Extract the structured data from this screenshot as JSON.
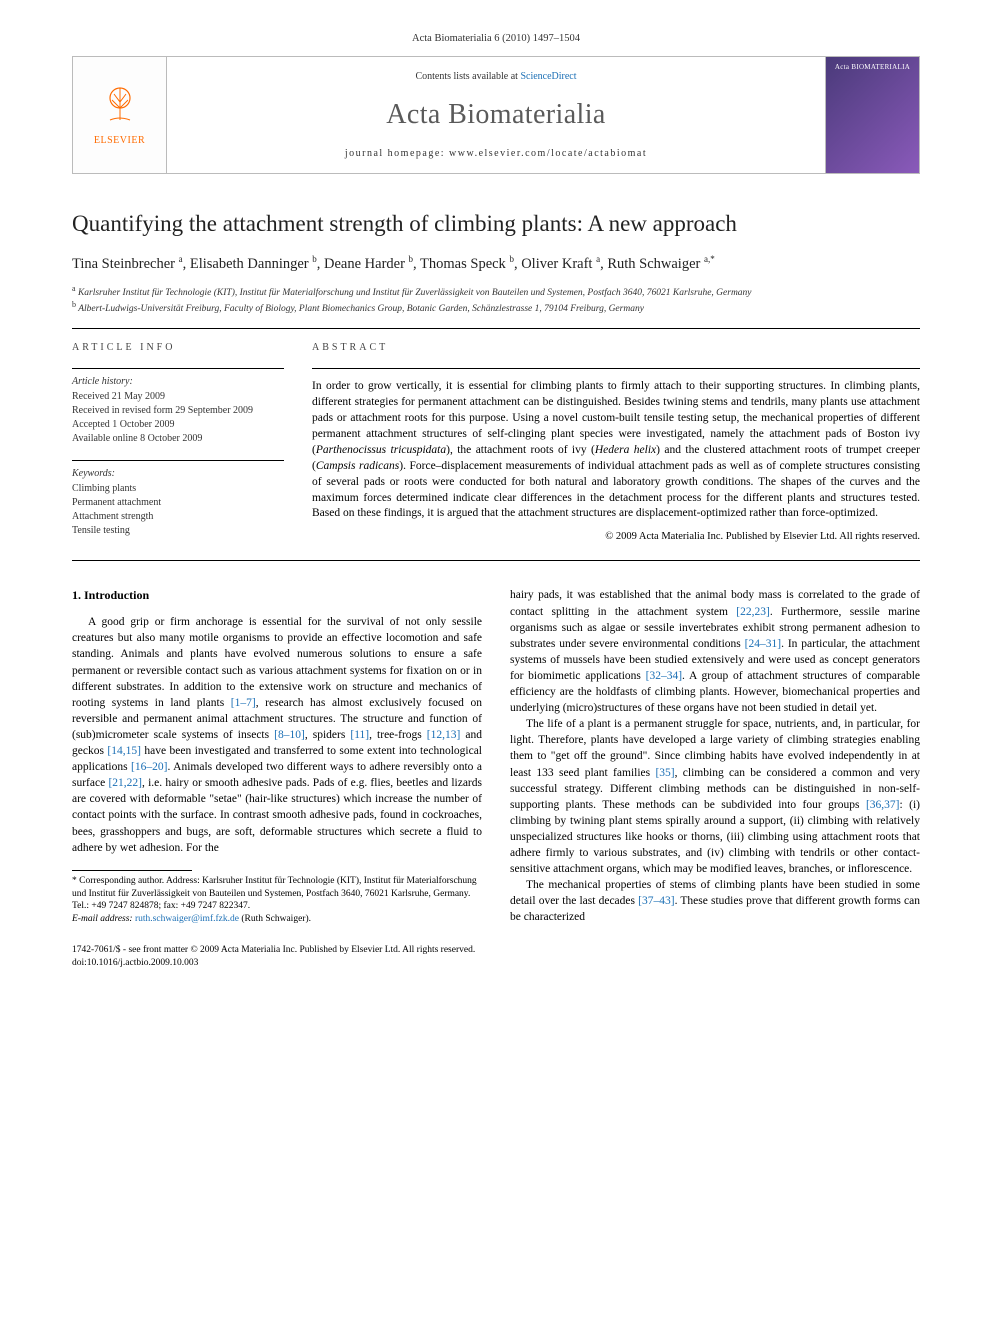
{
  "header": {
    "citation": "Acta Biomaterialia 6 (2010) 1497–1504"
  },
  "banner": {
    "publisher": "ELSEVIER",
    "contents_prefix": "Contents lists available at ",
    "contents_link": "ScienceDirect",
    "journal": "Acta Biomaterialia",
    "homepage_label": "journal homepage: www.elsevier.com/locate/actabiomat",
    "cover_label": "Acta BIOMATERIALIA"
  },
  "article": {
    "title": "Quantifying the attachment strength of climbing plants: A new approach",
    "authors_html": "Tina Steinbrecher <sup>a</sup>, Elisabeth Danninger <sup>b</sup>, Deane Harder <sup>b</sup>, Thomas Speck <sup>b</sup>, Oliver Kraft <sup>a</sup>, Ruth Schwaiger <sup>a,*</sup>",
    "affiliations": {
      "a": "Karlsruher Institut für Technologie (KIT), Institut für Materialforschung und Institut für Zuverlässigkeit von Bauteilen und Systemen, Postfach 3640, 76021 Karlsruhe, Germany",
      "b": "Albert-Ludwigs-Universität Freiburg, Faculty of Biology, Plant Biomechanics Group, Botanic Garden, Schänzlestrasse 1, 79104 Freiburg, Germany"
    }
  },
  "info": {
    "section_label": "ARTICLE INFO",
    "history_label": "Article history:",
    "history": [
      "Received 21 May 2009",
      "Received in revised form 29 September 2009",
      "Accepted 1 October 2009",
      "Available online 8 October 2009"
    ],
    "keywords_label": "Keywords:",
    "keywords": [
      "Climbing plants",
      "Permanent attachment",
      "Attachment strength",
      "Tensile testing"
    ]
  },
  "abstract": {
    "section_label": "ABSTRACT",
    "text": "In order to grow vertically, it is essential for climbing plants to firmly attach to their supporting structures. In climbing plants, different strategies for permanent attachment can be distinguished. Besides twining stems and tendrils, many plants use attachment pads or attachment roots for this purpose. Using a novel custom-built tensile testing setup, the mechanical properties of different permanent attachment structures of self-clinging plant species were investigated, namely the attachment pads of Boston ivy (Parthenocissus tricuspidata), the attachment roots of ivy (Hedera helix) and the clustered attachment roots of trumpet creeper (Campsis radicans). Force–displacement measurements of individual attachment pads as well as of complete structures consisting of several pads or roots were conducted for both natural and laboratory growth conditions. The shapes of the curves and the maximum forces determined indicate clear differences in the detachment process for the different plants and structures tested. Based on these findings, it is argued that the attachment structures are displacement-optimized rather than force-optimized.",
    "copyright": "© 2009 Acta Materialia Inc. Published by Elsevier Ltd. All rights reserved."
  },
  "body": {
    "section_number": "1.",
    "section_title": "Introduction",
    "col1_p1": "A good grip or firm anchorage is essential for the survival of not only sessile creatures but also many motile organisms to provide an effective locomotion and safe standing. Animals and plants have evolved numerous solutions to ensure a safe permanent or reversible contact such as various attachment systems for fixation on or in different substrates. In addition to the extensive work on structure and mechanics of rooting systems in land plants [1–7], research has almost exclusively focused on reversible and permanent animal attachment structures. The structure and function of (sub)micrometer scale systems of insects [8–10], spiders [11], tree-frogs [12,13] and geckos [14,15] have been investigated and transferred to some extent into technological applications [16–20]. Animals developed two different ways to adhere reversibly onto a surface [21,22], i.e. hairy or smooth adhesive pads. Pads of e.g. flies, beetles and lizards are covered with deformable \"setae\" (hair-like structures) which increase the number of contact points with the surface. In contrast smooth adhesive pads, found in cockroaches, bees, grasshoppers and bugs, are soft, deformable structures which secrete a fluid to adhere by wet adhesion. For the",
    "col2_p1": "hairy pads, it was established that the animal body mass is correlated to the grade of contact splitting in the attachment system [22,23]. Furthermore, sessile marine organisms such as algae or sessile invertebrates exhibit strong permanent adhesion to substrates under severe environmental conditions [24–31]. In particular, the attachment systems of mussels have been studied extensively and were used as concept generators for biomimetic applications [32–34]. A group of attachment structures of comparable efficiency are the holdfasts of climbing plants. However, biomechanical properties and underlying (micro)structures of these organs have not been studied in detail yet.",
    "col2_p2": "The life of a plant is a permanent struggle for space, nutrients, and, in particular, for light. Therefore, plants have developed a large variety of climbing strategies enabling them to \"get off the ground\". Since climbing habits have evolved independently in at least 133 seed plant families [35], climbing can be considered a common and very successful strategy. Different climbing methods can be distinguished in non-self-supporting plants. These methods can be subdivided into four groups [36,37]: (i) climbing by twining plant stems spirally around a support, (ii) climbing with relatively unspecialized structures like hooks or thorns, (iii) climbing using attachment roots that adhere firmly to various substrates, and (iv) climbing with tendrils or other contact-sensitive attachment organs, which may be modified leaves, branches, or inflorescence.",
    "col2_p3": "The mechanical properties of stems of climbing plants have been studied in some detail over the last decades [37–43]. These studies prove that different growth forms can be characterized"
  },
  "footnote": {
    "corr": "* Corresponding author. Address: Karlsruher Institut für Technologie (KIT), Institut für Materialforschung und Institut für Zuverlässigkeit von Bauteilen und Systemen, Postfach 3640, 76021 Karlsruhe, Germany. Tel.: +49 7247 824878; fax: +49 7247 822347.",
    "email_label": "E-mail address:",
    "email": "ruth.schwaiger@imf.fzk.de",
    "email_name": "(Ruth Schwaiger)."
  },
  "footer": {
    "line1": "1742-7061/$ - see front matter © 2009 Acta Materialia Inc. Published by Elsevier Ltd. All rights reserved.",
    "line2": "doi:10.1016/j.actbio.2009.10.003"
  },
  "colors": {
    "link": "#1b6fb5",
    "elsevier": "#ff6b00",
    "cover_bg": "#5a3a8a"
  }
}
